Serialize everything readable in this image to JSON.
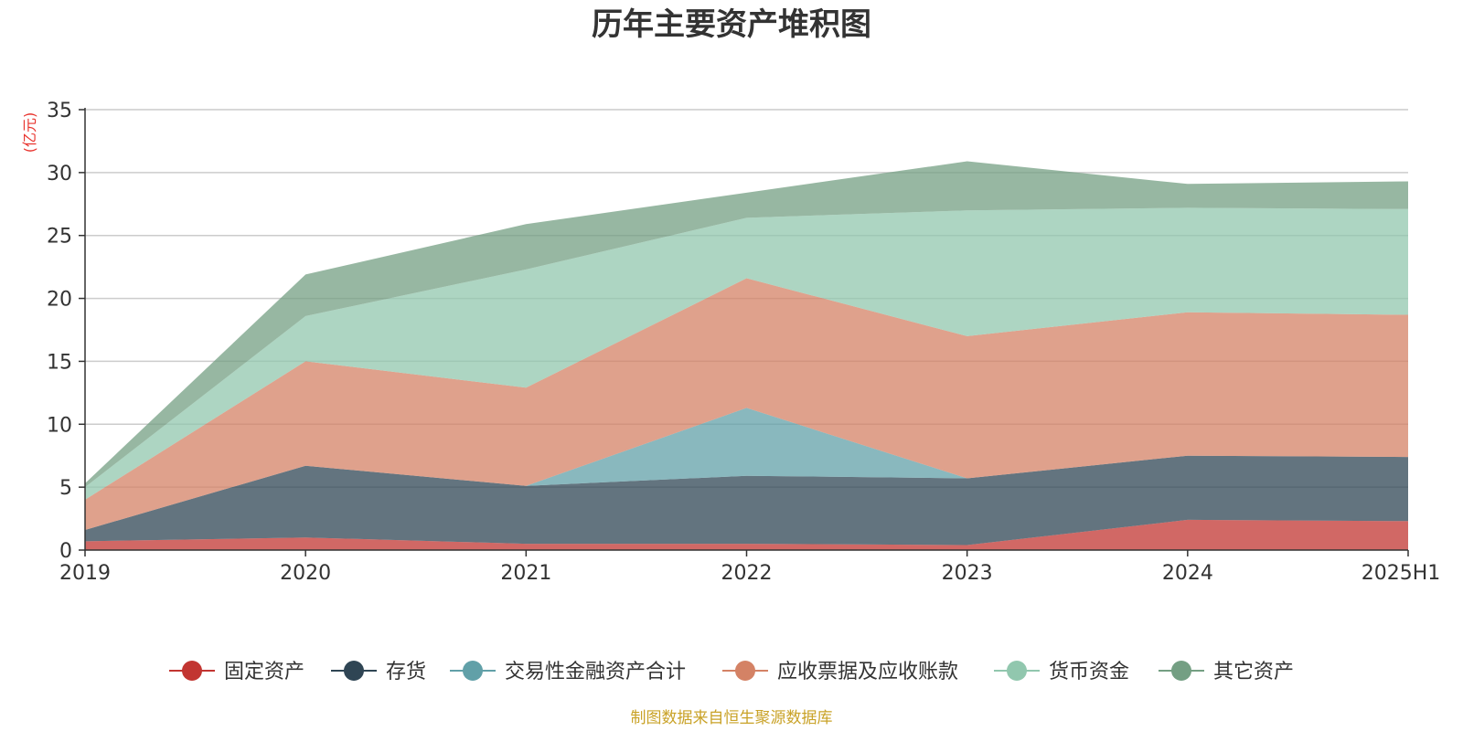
{
  "footer": "制图数据来自恒生聚源数据库",
  "chart_data": {
    "type": "area",
    "stacked": true,
    "title": "历年主要资产堆积图",
    "ylabel": "(亿元)",
    "categories": [
      "2019",
      "2020",
      "2021",
      "2022",
      "2023",
      "2024",
      "2025H1"
    ],
    "yticks": [
      0,
      5,
      10,
      15,
      20,
      25,
      30,
      35
    ],
    "ylim": [
      0,
      35
    ],
    "grid": true,
    "legend_position": "bottom",
    "series": [
      {
        "name": "固定资产",
        "color": "#c23531",
        "values": [
          0.7,
          1.0,
          0.5,
          0.5,
          0.4,
          2.4,
          2.3
        ]
      },
      {
        "name": "存货",
        "color": "#2f4554",
        "values": [
          0.9,
          5.7,
          4.6,
          5.4,
          5.3,
          5.1,
          5.1
        ]
      },
      {
        "name": "交易性金融资产合计",
        "color": "#61a0a8",
        "values": [
          0,
          0,
          0,
          5.4,
          0,
          0,
          0
        ]
      },
      {
        "name": "应收票据及应收账款",
        "color": "#d48265",
        "values": [
          2.4,
          8.3,
          7.8,
          10.3,
          11.3,
          11.4,
          11.3
        ]
      },
      {
        "name": "货币资金",
        "color": "#91c7ae",
        "values": [
          1.0,
          3.6,
          9.4,
          4.8,
          10.0,
          8.3,
          8.4
        ]
      },
      {
        "name": "其它资产",
        "color": "#749f83",
        "values": [
          0.3,
          3.3,
          3.6,
          2.0,
          3.9,
          1.9,
          2.2
        ]
      }
    ]
  }
}
